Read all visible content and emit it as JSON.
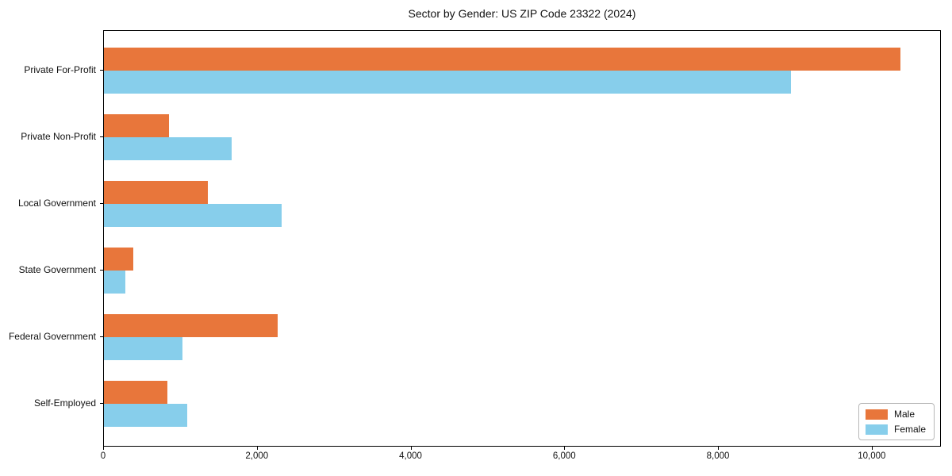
{
  "chart_data": {
    "type": "bar",
    "orientation": "horizontal",
    "title": "Sector by Gender: US ZIP Code 23322 (2024)",
    "categories": [
      "Private For-Profit",
      "Private Non-Profit",
      "Local Government",
      "State Government",
      "Federal Government",
      "Self-Employed"
    ],
    "series": [
      {
        "name": "Male",
        "color": "#E8763B",
        "values": [
          10360,
          845,
          1350,
          380,
          2265,
          825
        ]
      },
      {
        "name": "Female",
        "color": "#87CEEB",
        "values": [
          8940,
          1665,
          2315,
          280,
          1020,
          1080
        ]
      }
    ],
    "xlabel": "",
    "ylabel": "",
    "xlim": [
      0,
      10880
    ],
    "x_ticks": [
      0,
      2000,
      4000,
      6000,
      8000,
      10000
    ],
    "x_tick_labels": [
      "0",
      "2,000",
      "4,000",
      "6,000",
      "8,000",
      "10,000"
    ],
    "grid": false,
    "legend": {
      "position": "lower right",
      "entries": [
        "Male",
        "Female"
      ]
    }
  },
  "colors": {
    "male": "#E8763B",
    "female": "#87CEEB",
    "axis": "#000000",
    "background": "#ffffff"
  }
}
